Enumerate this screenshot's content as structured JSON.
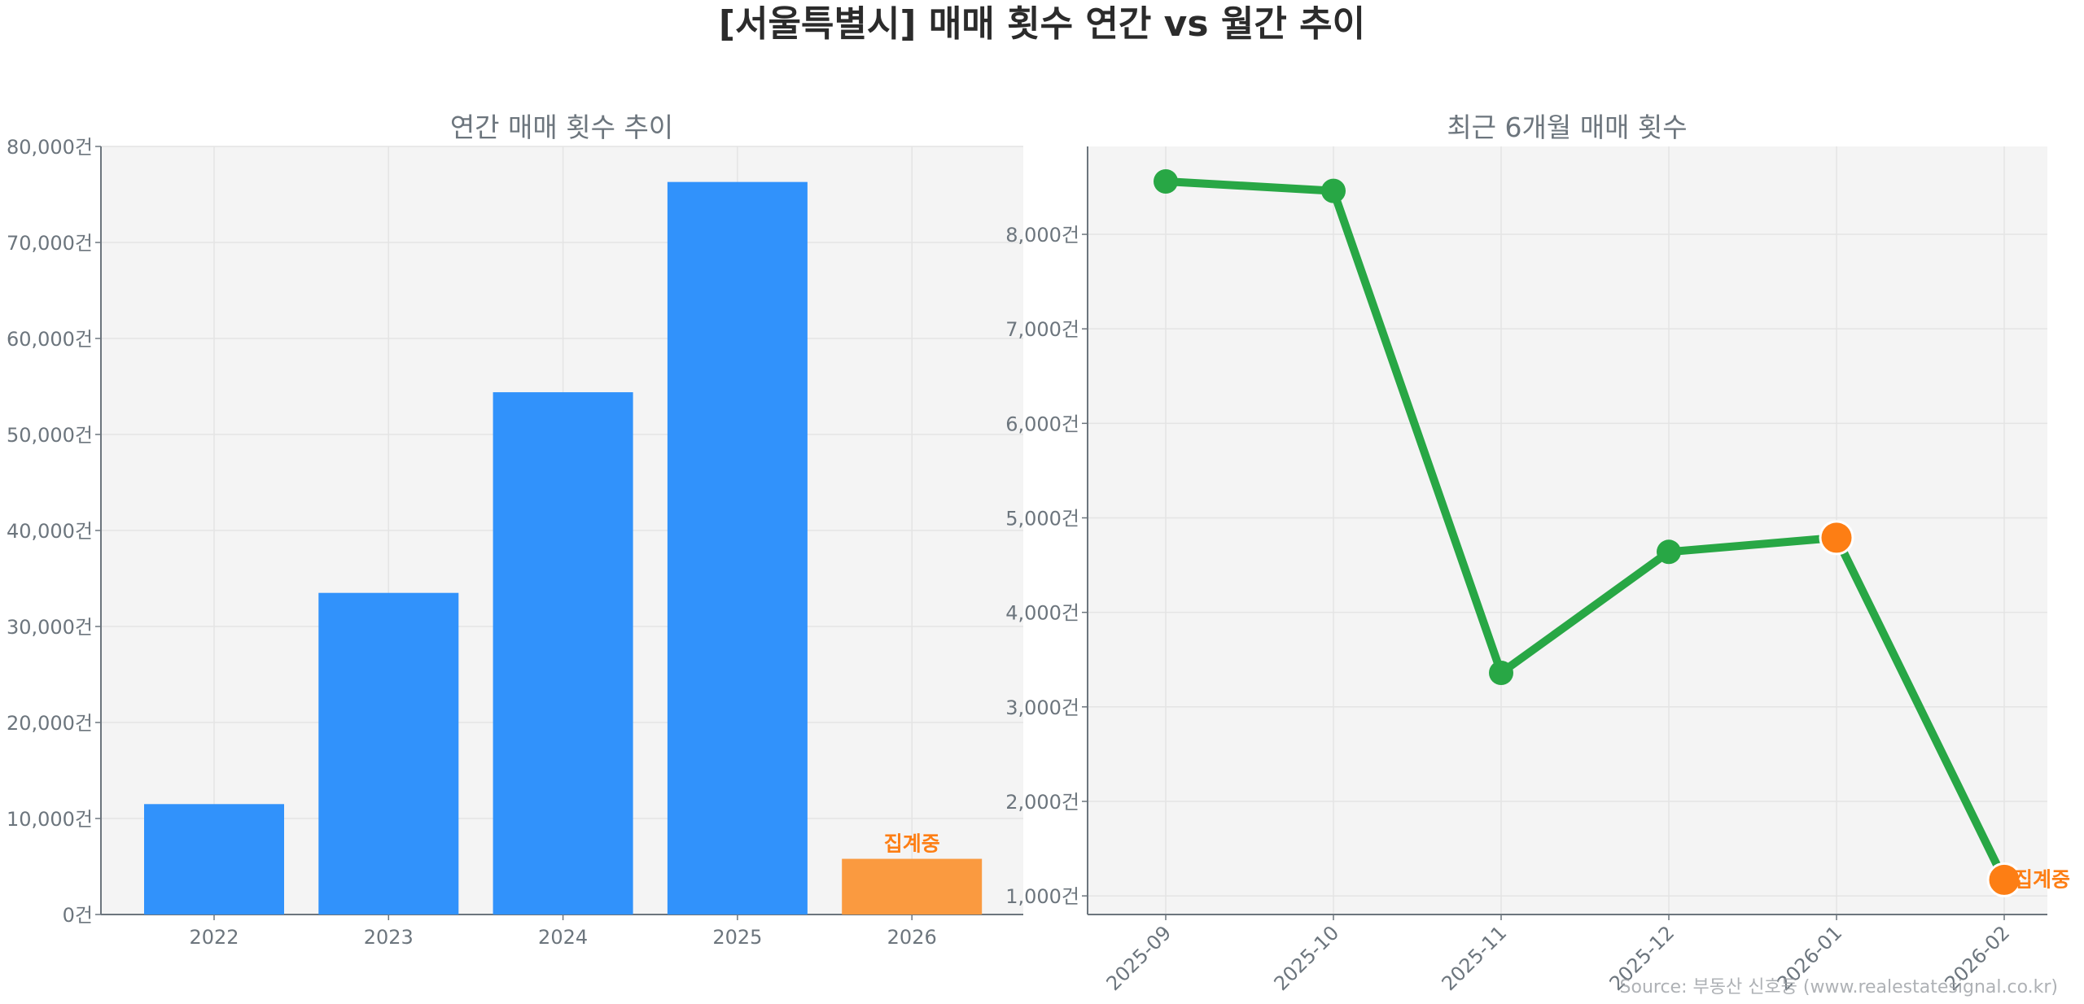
{
  "title": "[서울특별시] 매매 횟수 연간 vs 월간 추이",
  "source": "Source: 부동산 신호등 (www.realestatesignal.co.kr)",
  "colors": {
    "bar": "#3192fb",
    "bar_partial": "#fa9a40",
    "line": "#28a745",
    "marker_partial": "#fd7e14",
    "annotation": "#fd7e14",
    "plot_bg": "#f4f4f4"
  },
  "chart_data": [
    {
      "type": "bar",
      "title": "연간 매매 횟수 추이",
      "categories": [
        "2022",
        "2023",
        "2024",
        "2025",
        "2026"
      ],
      "values": [
        11500,
        33500,
        54400,
        76300,
        5800
      ],
      "partial": [
        false,
        false,
        false,
        false,
        true
      ],
      "ylim": [
        0,
        80000
      ],
      "yticks": [
        0,
        10000,
        20000,
        30000,
        40000,
        50000,
        60000,
        70000,
        80000
      ],
      "ytick_labels": [
        "0건",
        "10,000건",
        "20,000건",
        "30,000건",
        "40,000건",
        "50,000건",
        "60,000건",
        "70,000건",
        "80,000건"
      ],
      "annotation": "집계중",
      "grid": true
    },
    {
      "type": "line",
      "title": "최근 6개월 매매 횟수",
      "categories": [
        "2025-09",
        "2025-10",
        "2025-11",
        "2025-12",
        "2026-01",
        "2026-02"
      ],
      "values": [
        8560,
        8460,
        3360,
        4640,
        4790,
        1170
      ],
      "partial": [
        false,
        false,
        false,
        false,
        true,
        true
      ],
      "ylim": [
        803,
        8930
      ],
      "yticks": [
        1000,
        2000,
        3000,
        4000,
        5000,
        6000,
        7000,
        8000
      ],
      "ytick_labels": [
        "1,000건",
        "2,000건",
        "3,000건",
        "4,000건",
        "5,000건",
        "6,000건",
        "7,000건",
        "8,000건"
      ],
      "annotation": "집계중",
      "grid": true
    }
  ]
}
